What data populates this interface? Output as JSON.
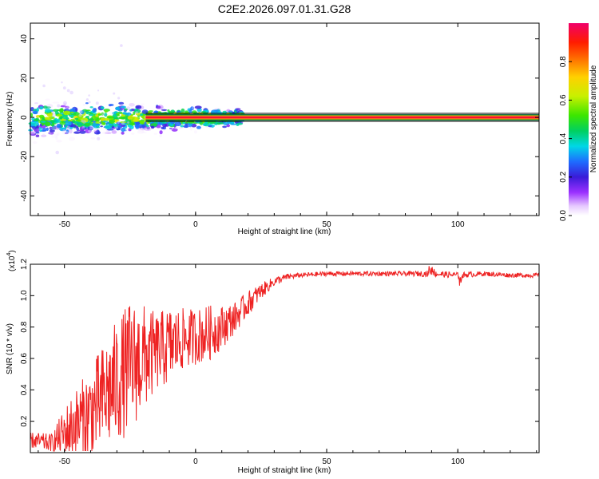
{
  "figure": {
    "title": "C2E2.2026.097.01.31.G28"
  },
  "chart_data": [
    {
      "type": "heatmap",
      "title": "C2E2.2026.097.01.31.G28",
      "xlabel": "Height of straight line (km)",
      "ylabel": "Frequency (Hz)",
      "xlim": [
        -63,
        131
      ],
      "ylim": [
        -50,
        48
      ],
      "xticks": [
        -50,
        0,
        50,
        100
      ],
      "yticks": [
        -40,
        -20,
        0,
        20,
        40
      ],
      "colorbar": {
        "label": "Normalized spectral amplitude",
        "range": [
          0,
          1
        ],
        "ticks": [
          "0.0",
          "0.2",
          "0.4",
          "0.6",
          "0.8"
        ]
      },
      "tone_line": {
        "frequency": 0,
        "x_start": -19,
        "x_end": 131,
        "amplitude": 0.95
      },
      "scatter_band": {
        "x_start": -63,
        "x_end": 18,
        "center_freq": -2,
        "spread": 9
      }
    },
    {
      "type": "line",
      "xlabel": "Height of straight line (km)",
      "ylabel": "SNR (10 * v/v)",
      "multiplier_label": "(x10",
      "multiplier_exp": "4",
      "multiplier_close": ")",
      "xlim": [
        -63,
        131
      ],
      "ylim": [
        0,
        1.2
      ],
      "xticks": [
        -50,
        0,
        50,
        100
      ],
      "yticks": [
        "0.2",
        "0.4",
        "0.6",
        "0.8",
        "1.0",
        "1.2"
      ],
      "series": [
        {
          "name": "SNR",
          "color": "#ee2222",
          "x": [
            -63,
            -55,
            -48,
            -40,
            -35,
            -30,
            -25,
            -20,
            -15,
            -10,
            -5,
            0,
            5,
            10,
            15,
            20,
            25,
            30,
            35,
            40,
            50,
            60,
            70,
            80,
            90,
            100,
            110,
            120,
            131
          ],
          "y": [
            0.08,
            0.06,
            0.15,
            0.25,
            0.35,
            0.45,
            0.55,
            0.6,
            0.64,
            0.68,
            0.72,
            0.74,
            0.76,
            0.8,
            0.86,
            0.95,
            1.03,
            1.09,
            1.12,
            1.13,
            1.14,
            1.14,
            1.14,
            1.14,
            1.14,
            1.13,
            1.14,
            1.13,
            1.13
          ],
          "noise": [
            0.05,
            0.06,
            0.2,
            0.3,
            0.35,
            0.4,
            0.42,
            0.35,
            0.25,
            0.25,
            0.2,
            0.18,
            0.18,
            0.14,
            0.1,
            0.08,
            0.05,
            0.03,
            0.02,
            0.015,
            0.015,
            0.015,
            0.015,
            0.015,
            0.02,
            0.02,
            0.015,
            0.015,
            0.015
          ]
        }
      ]
    }
  ]
}
